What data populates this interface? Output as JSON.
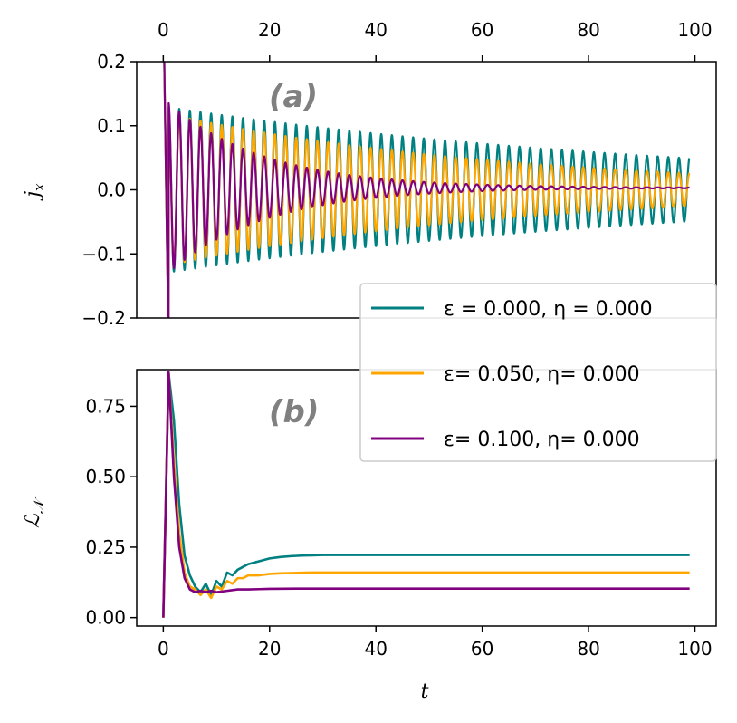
{
  "colors": {
    "teal": "#008080",
    "orange": "#FFA500",
    "purple": "#800080"
  },
  "legend": {
    "entries": [
      {
        "label": "ε = 0.000, η = 0.000",
        "color": "#008080"
      },
      {
        "label": "ε=  0.050, η= 0.000",
        "color": "#FFA500"
      },
      {
        "label": "ε=  0.100, η= 0.000",
        "color": "#800080"
      }
    ]
  },
  "chart_data": [
    {
      "type": "line",
      "panel_label": "(a)",
      "ylabel": "j_x",
      "xlabel": "t",
      "xlim": [
        -5,
        104
      ],
      "ylim": [
        -0.2,
        0.2
      ],
      "xticks": [
        "0",
        "20",
        "40",
        "60",
        "80",
        "100"
      ],
      "yticks": [
        "0.2",
        "0.1",
        "0.0",
        "−0.1",
        "−0.2"
      ],
      "x_range": [
        0,
        99
      ],
      "series": [
        {
          "name": "ε = 0.000, η = 0.000",
          "omega": 3.0,
          "amp0": 0.13,
          "decay": 0.0098,
          "offset": 0.0,
          "t0": 0.0
        },
        {
          "name": "ε=  0.050, η= 0.000",
          "omega": 3.0,
          "amp0": 0.12,
          "decay": 0.0155,
          "offset": 0.0,
          "t0": 0.0
        },
        {
          "name": "ε=  0.100, η= 0.000",
          "omega": 3.0,
          "amp0": 0.14,
          "decay": 0.055,
          "offset": 0.003,
          "t0": 0.0
        }
      ]
    },
    {
      "type": "line",
      "panel_label": "(b)",
      "ylabel": "ℒ_𝒩",
      "xlabel": "t",
      "xlim": [
        -5,
        104
      ],
      "ylim": [
        -0.03,
        0.88
      ],
      "xticks": [
        "0",
        "20",
        "40",
        "60",
        "80",
        "100"
      ],
      "yticks": [
        "0.75",
        "0.50",
        "0.25",
        "0.00"
      ],
      "series": [
        {
          "name": "ε = 0.000, η = 0.000",
          "x": [
            0,
            1,
            2,
            3,
            4,
            5,
            6,
            7,
            8,
            9,
            10,
            11,
            12,
            13,
            14,
            15,
            16,
            18,
            20,
            22,
            24,
            26,
            28,
            30,
            35,
            40,
            50,
            60,
            70,
            80,
            90,
            99
          ],
          "y": [
            0,
            0.87,
            0.7,
            0.4,
            0.22,
            0.15,
            0.11,
            0.09,
            0.12,
            0.08,
            0.13,
            0.11,
            0.16,
            0.15,
            0.17,
            0.18,
            0.19,
            0.2,
            0.21,
            0.215,
            0.218,
            0.22,
            0.221,
            0.222,
            0.222,
            0.222,
            0.222,
            0.222,
            0.222,
            0.222,
            0.222,
            0.222
          ]
        },
        {
          "name": "ε=  0.050, η= 0.000",
          "x": [
            0,
            1,
            2,
            3,
            4,
            5,
            6,
            7,
            8,
            9,
            10,
            11,
            12,
            13,
            14,
            15,
            16,
            18,
            20,
            22,
            24,
            26,
            28,
            30,
            35,
            40,
            50,
            60,
            70,
            80,
            90,
            99
          ],
          "y": [
            0,
            0.87,
            0.55,
            0.3,
            0.16,
            0.11,
            0.1,
            0.08,
            0.1,
            0.07,
            0.11,
            0.1,
            0.13,
            0.12,
            0.14,
            0.14,
            0.15,
            0.15,
            0.155,
            0.157,
            0.158,
            0.159,
            0.16,
            0.16,
            0.16,
            0.16,
            0.16,
            0.16,
            0.16,
            0.16,
            0.16,
            0.16
          ]
        },
        {
          "name": "ε=  0.100, η= 0.000",
          "x": [
            0,
            1,
            2,
            3,
            4,
            5,
            6,
            7,
            8,
            9,
            10,
            12,
            14,
            16,
            18,
            20,
            25,
            30,
            40,
            50,
            60,
            70,
            80,
            90,
            99
          ],
          "y": [
            0,
            0.87,
            0.5,
            0.25,
            0.14,
            0.1,
            0.09,
            0.095,
            0.09,
            0.095,
            0.09,
            0.095,
            0.1,
            0.1,
            0.101,
            0.102,
            0.103,
            0.103,
            0.103,
            0.103,
            0.103,
            0.103,
            0.103,
            0.103,
            0.103
          ]
        }
      ]
    }
  ]
}
